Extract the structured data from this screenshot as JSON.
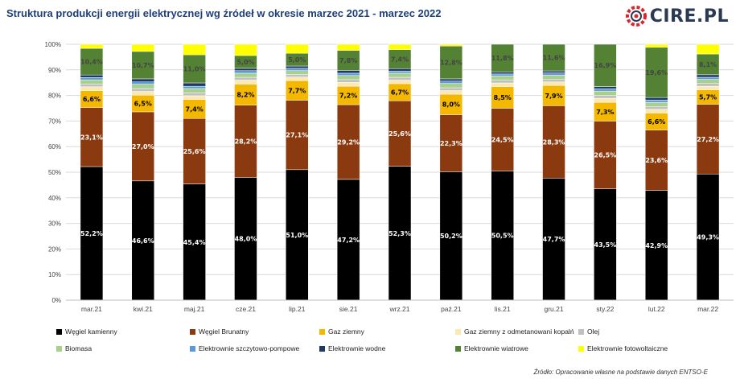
{
  "header": {
    "title": "Struktura produkcji energii elektrycznej wg źródeł w okresie marzec 2021 - marzec 2022",
    "logo_text": "CIRE.PL"
  },
  "source_note": "Źródło: Opracowanie własne na podstawie danych ENTSO-E",
  "colors": {
    "wegiel_kamienny": "#000000",
    "wegiel_brunatny": "#8b3a0f",
    "gaz_ziemny": "#f5b800",
    "gaz_odmetanowanie": "#fde9b0",
    "olej": "#c0c0c0",
    "biomasa": "#a8d08d",
    "szczytowo_pompowe": "#5b9bd5",
    "wodne": "#1f3864",
    "wiatrowe": "#548235",
    "fotowoltaiczne": "#ffff00"
  },
  "chart_data": {
    "type": "bar",
    "stacked": true,
    "categories": [
      "mar.21",
      "kwi.21",
      "maj.21",
      "cze.21",
      "lip.21",
      "sie.21",
      "wrz.21",
      "paź.21",
      "lis.21",
      "gru.21",
      "sty.22",
      "lut.22",
      "mar.22"
    ],
    "y_ticks": [
      "0%",
      "10%",
      "20%",
      "30%",
      "40%",
      "50%",
      "60%",
      "70%",
      "80%",
      "90%",
      "100%"
    ],
    "ylim": [
      0,
      100
    ],
    "legend_position": "bottom",
    "series": [
      {
        "name": "Węgiel kamienny",
        "key": "wegiel_kamienny",
        "label_color": "#ffffff",
        "values": [
          52.2,
          46.6,
          45.4,
          48.0,
          51.0,
          47.2,
          52.3,
          50.2,
          50.5,
          47.7,
          43.5,
          42.9,
          49.3
        ],
        "labels": [
          "52,2%",
          "46,6%",
          "45,4%",
          "48,0%",
          "51,0%",
          "47,2%",
          "52,3%",
          "50,2%",
          "50,5%",
          "47,7%",
          "43,5%",
          "42,9%",
          "49,3%"
        ]
      },
      {
        "name": "Węgiel Brunatny",
        "key": "wegiel_brunatny",
        "label_color": "#ffffff",
        "values": [
          23.1,
          27.0,
          25.6,
          28.2,
          27.1,
          29.2,
          25.6,
          22.3,
          24.5,
          28.3,
          26.5,
          23.6,
          27.2
        ],
        "labels": [
          "23,1%",
          "27,0%",
          "25,6%",
          "28,2%",
          "27,1%",
          "29,2%",
          "25,6%",
          "22,3%",
          "24,5%",
          "28,3%",
          "26,5%",
          "23,6%",
          "27,2%"
        ]
      },
      {
        "name": "Gaz  ziemny",
        "key": "gaz_ziemny",
        "label_color": "#000000",
        "values": [
          6.6,
          6.5,
          7.4,
          8.2,
          7.7,
          7.2,
          6.7,
          8.0,
          8.5,
          7.9,
          7.3,
          6.6,
          5.7
        ],
        "labels": [
          "6,6%",
          "6,5%",
          "7,4%",
          "8,2%",
          "7,7%",
          "7,2%",
          "6,7%",
          "8,0%",
          "8,5%",
          "7,9%",
          "7,3%",
          "6,6%",
          "5,7%"
        ]
      },
      {
        "name": "Gaz ziemny z odmetanowani kopalń",
        "key": "gaz_odmetanowanie",
        "values": [
          1.5,
          1.5,
          1.5,
          1.6,
          1.4,
          1.5,
          1.4,
          1.4,
          1.4,
          1.4,
          1.6,
          1.5,
          1.4
        ]
      },
      {
        "name": "Olej",
        "key": "olej",
        "values": [
          1.1,
          1.1,
          1.1,
          1.1,
          1.0,
          1.1,
          1.1,
          1.1,
          1.1,
          1.1,
          1.1,
          1.1,
          1.1
        ]
      },
      {
        "name": "Biomasa",
        "key": "biomasa",
        "values": [
          1.6,
          1.7,
          1.7,
          1.6,
          1.5,
          1.6,
          1.6,
          1.7,
          1.6,
          1.5,
          1.7,
          1.6,
          1.6
        ]
      },
      {
        "name": "Elektrownie szczytowo-pompowe",
        "key": "szczytowo_pompowe",
        "values": [
          0.9,
          0.9,
          0.9,
          1.0,
          0.9,
          0.9,
          0.8,
          0.9,
          0.8,
          0.9,
          0.9,
          0.9,
          0.8
        ]
      },
      {
        "name": "Elektrownie wodne",
        "key": "wodne",
        "values": [
          1.0,
          1.2,
          1.3,
          0.9,
          0.9,
          1.1,
          1.0,
          0.9,
          0.8,
          0.8,
          0.9,
          1.0,
          1.0
        ]
      },
      {
        "name": "Elektrownie wiatrowe",
        "key": "wiatrowe",
        "label_color": "#444444",
        "values": [
          10.4,
          10.7,
          11.0,
          5.0,
          5.0,
          7.8,
          7.4,
          12.8,
          11.8,
          11.6,
          16.9,
          19.6,
          8.1
        ],
        "labels": [
          "10,4%",
          "10,7%",
          "11,0%",
          "5,0%",
          "5,0%",
          "7,8%",
          "7,4%",
          "12,8%",
          "11,8%",
          "11,6%",
          "16,9%",
          "19,6%",
          "8,1%"
        ]
      },
      {
        "name": "Elektrownie fotowoltaiczne",
        "key": "fotowoltaiczne",
        "values": [
          1.6,
          2.8,
          4.1,
          4.4,
          4.5,
          2.4,
          2.1,
          1.5,
          0.9,
          0.8,
          0.7,
          2.1,
          4.8
        ]
      }
    ]
  }
}
